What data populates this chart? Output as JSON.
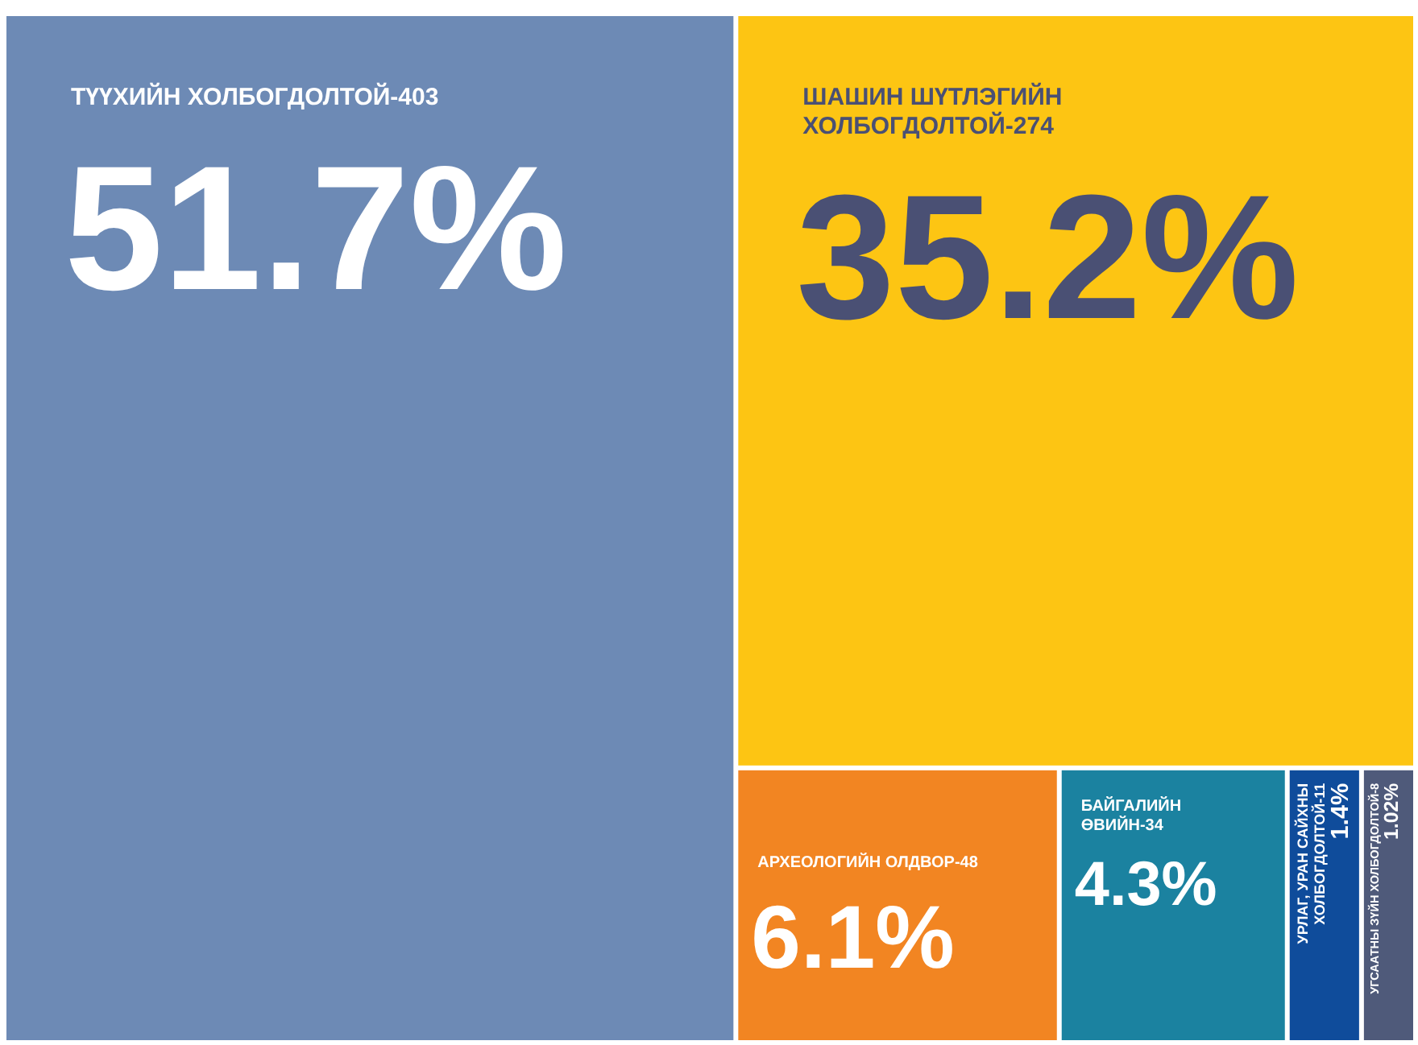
{
  "chart_data": {
    "type": "other",
    "categories": [
      "ТҮҮХИЙН ХОЛБОГДОЛТОЙ-403",
      "ШАШИН ШҮТЛЭГИЙН ХОЛБОГДОЛТОЙ-274",
      "АРХЕОЛОГИЙН ОЛДВОР-48",
      "БАЙГАЛИЙН ӨВИЙН-34",
      "УРЛАГ, УРАН САЙХНЫ ХОЛБОГДОЛТОЙ-11",
      "УГСААТНЫ ЗҮЙН ХОЛБОГДОЛТОЙ-8"
    ],
    "values": [
      51.7,
      35.2,
      6.1,
      4.3,
      1.4,
      1.02
    ],
    "value_labels": [
      "51.7%",
      "35.2%",
      "6.1%",
      "4.3%",
      "1.4%",
      "1.02%"
    ],
    "colors": [
      "#6d8ab5",
      "#fdc513",
      "#f28522",
      "#1b82a0",
      "#0f4c9b",
      "#4f5a7a"
    ]
  }
}
